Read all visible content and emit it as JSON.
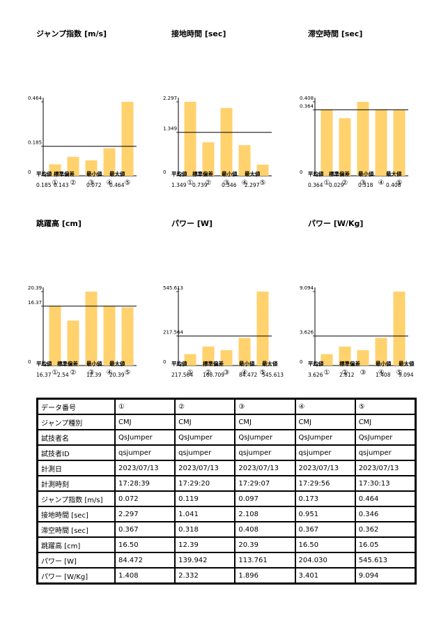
{
  "stats_labels": [
    "平均値",
    "標準偏差",
    "最小値",
    "最大値"
  ],
  "categories": [
    "①",
    "②",
    "③",
    "④",
    "⑤"
  ],
  "chart_data": [
    {
      "type": "bar",
      "title": "ジャンプ指数 [m/s]",
      "categories": [
        "①",
        "②",
        "③",
        "④",
        "⑤"
      ],
      "values": [
        0.072,
        0.119,
        0.097,
        0.173,
        0.464
      ],
      "ylim": [
        0,
        0.464
      ],
      "yticks": [
        "0",
        "0.185",
        "0.464"
      ],
      "mean_line": 0.185,
      "stats": [
        "0.185",
        "0.143",
        "0.072",
        "0.464"
      ]
    },
    {
      "type": "bar",
      "title": "接地時間 [sec]",
      "categories": [
        "①",
        "②",
        "③",
        "④",
        "⑤"
      ],
      "values": [
        2.297,
        1.041,
        2.108,
        0.951,
        0.346
      ],
      "ylim": [
        0,
        2.297
      ],
      "yticks": [
        "0",
        "1.349",
        "2.297"
      ],
      "mean_line": 1.349,
      "stats": [
        "1.349",
        "0.739",
        "0.346",
        "2.297"
      ]
    },
    {
      "type": "bar",
      "title": "滞空時間 [sec]",
      "categories": [
        "①",
        "②",
        "③",
        "④",
        "⑤"
      ],
      "values": [
        0.367,
        0.318,
        0.408,
        0.367,
        0.362
      ],
      "ylim": [
        0,
        0.408
      ],
      "yticks": [
        "0",
        "0.364",
        "0.408"
      ],
      "mean_line": 0.364,
      "stats": [
        "0.364",
        "0.029",
        "0.318",
        "0.408"
      ]
    },
    {
      "type": "bar",
      "title": "跳躍高 [cm]",
      "categories": [
        "①",
        "②",
        "③",
        "④",
        "⑤"
      ],
      "values": [
        16.5,
        12.39,
        20.39,
        16.5,
        16.05
      ],
      "ylim": [
        0,
        20.39
      ],
      "yticks": [
        "0",
        "16.37",
        "20.39"
      ],
      "mean_line": 16.37,
      "stats": [
        "16.37",
        "2.54",
        "12.39",
        "20.39"
      ]
    },
    {
      "type": "bar",
      "title": "パワー [W]",
      "categories": [
        "①",
        "②",
        "③",
        "④",
        "⑤"
      ],
      "values": [
        84.472,
        139.942,
        113.761,
        204.03,
        545.613
      ],
      "ylim": [
        0,
        545.613
      ],
      "yticks": [
        "0",
        "217.564",
        "545.613"
      ],
      "mean_line": 217.564,
      "stats": [
        "217.564",
        "168.709",
        "84.472",
        "545.613"
      ]
    },
    {
      "type": "bar",
      "title": "パワー [W/Kg]",
      "categories": [
        "①",
        "②",
        "③",
        "④",
        "⑤"
      ],
      "values": [
        1.408,
        2.332,
        1.896,
        3.401,
        9.094
      ],
      "ylim": [
        0,
        9.094
      ],
      "yticks": [
        "0",
        "3.626",
        "9.094"
      ],
      "mean_line": 3.626,
      "stats": [
        "3.626",
        "2.812",
        "1.408",
        "9.094"
      ]
    }
  ],
  "table": {
    "rows": [
      [
        "データ番号",
        "①",
        "②",
        "③",
        "④",
        "⑤"
      ],
      [
        "ジャンプ種別",
        "CMJ",
        "CMJ",
        "CMJ",
        "CMJ",
        "CMJ"
      ],
      [
        "試技者名",
        "QsJumper",
        "QsJumper",
        "QsJumper",
        "QsJumper",
        "QsJumper"
      ],
      [
        "試技者ID",
        "qsjumper",
        "qsjumper",
        "qsjumper",
        "qsjumper",
        "qsjumper"
      ],
      [
        "計測日",
        "2023/07/13",
        "2023/07/13",
        "2023/07/13",
        "2023/07/13",
        "2023/07/13"
      ],
      [
        "計測時刻",
        "17:28:39",
        "17:29:20",
        "17:29:07",
        "17:29:56",
        "17:30:13"
      ],
      [
        "ジャンプ指数 [m/s]",
        "0.072",
        "0.119",
        "0.097",
        "0.173",
        "0.464"
      ],
      [
        "接地時間 [sec]",
        "2.297",
        "1.041",
        "2.108",
        "0.951",
        "0.346"
      ],
      [
        "滞空時間 [sec]",
        "0.367",
        "0.318",
        "0.408",
        "0.367",
        "0.362"
      ],
      [
        "跳躍高 [cm]",
        "16.50",
        "12.39",
        "20.39",
        "16.50",
        "16.05"
      ],
      [
        "パワー [W]",
        "84.472",
        "139.942",
        "113.761",
        "204.030",
        "545.613"
      ],
      [
        "パワー [W/Kg]",
        "1.408",
        "2.332",
        "1.896",
        "3.401",
        "9.094"
      ]
    ]
  },
  "colors": {
    "bar": "#FFD26E",
    "line": "#000000",
    "axis": "#000000"
  }
}
